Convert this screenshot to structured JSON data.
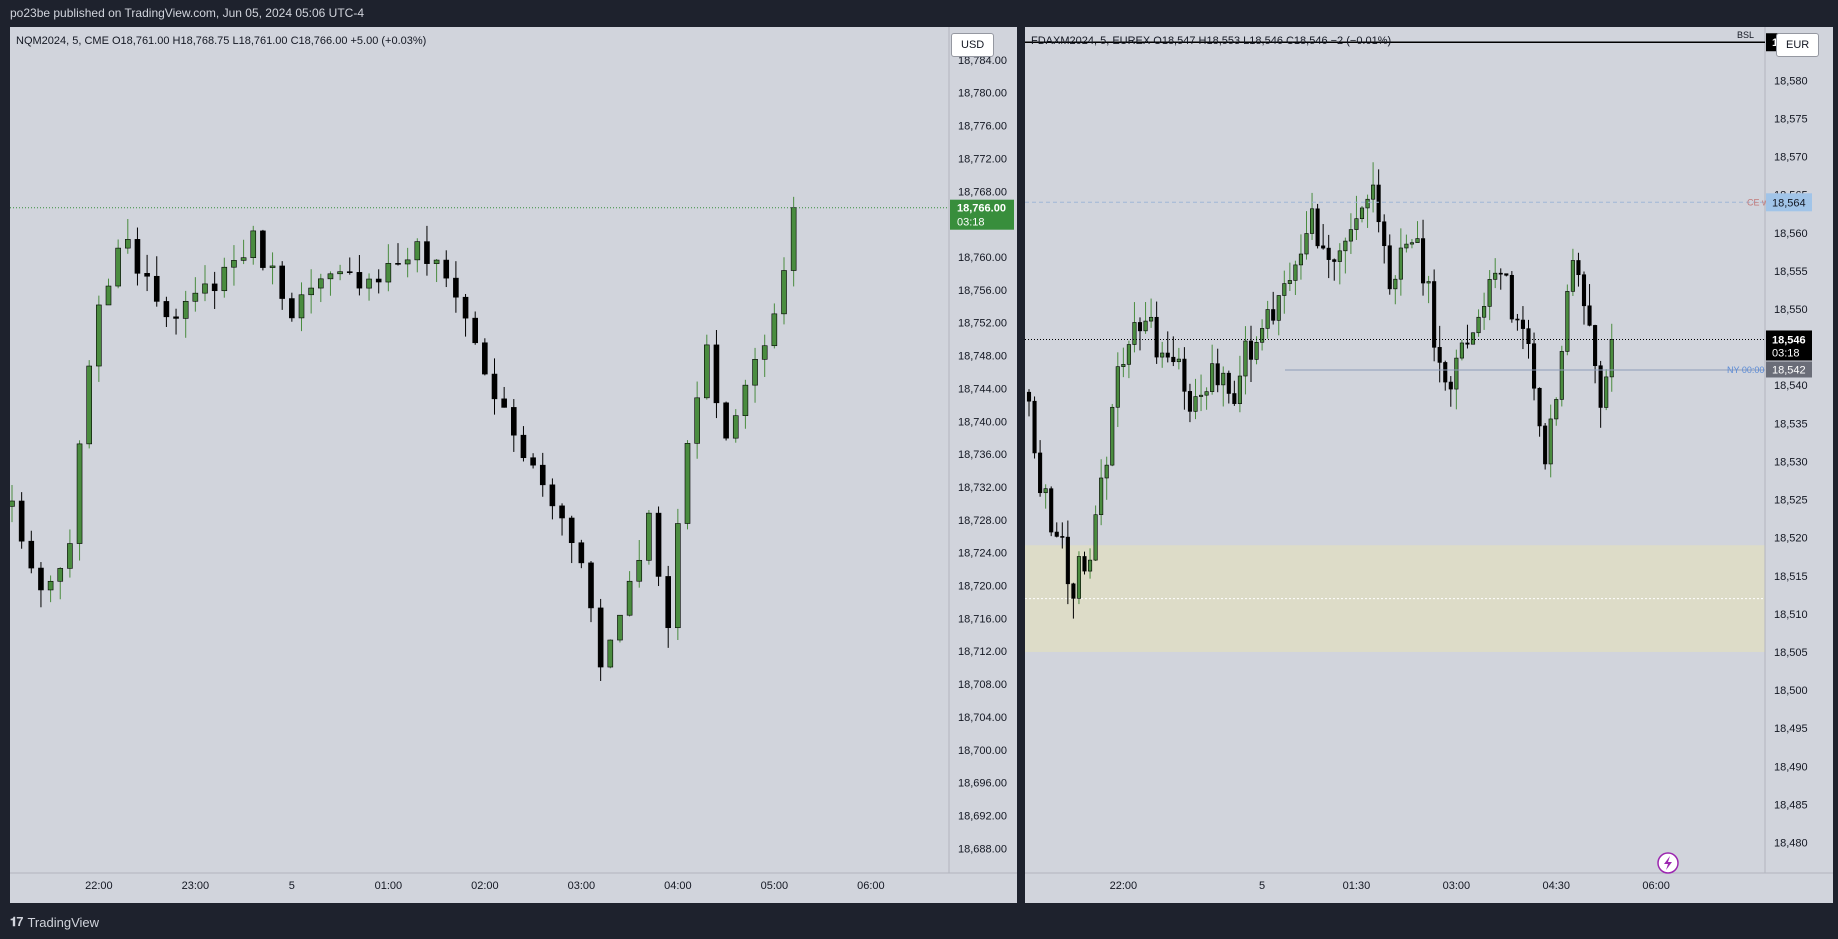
{
  "header": {
    "published": "po23be published on TradingView.com, Jun 05, 2024 05:06 UTC-4"
  },
  "footer": {
    "brand": "TradingView",
    "logo_icon": "tradingview-logo-icon"
  },
  "colors": {
    "background": "#d1d4dc",
    "bull": "#4a8c3f",
    "bear": "#000000",
    "grid_line": "#b2b5be",
    "last_price_nq": "#388e3c",
    "ce_label": "#a1c4e8",
    "zone": "#dddcc8"
  },
  "nq": {
    "legend": "NQM2024, 5, CME  O18,761.00  H18,768.75  L18,761.00  C18,766.00  +5.00 (+0.03%)",
    "currency": "USD",
    "last_price": "18,766.00",
    "countdown": "03:18"
  },
  "dax": {
    "legend": "FDAXM2024, 5, EUREX  O18,547  H18,553  L18,546  C18,546  −2 (−0.01%)",
    "currency": "EUR",
    "bsl_label": "BSL",
    "bsl_price": "18,585",
    "ce_label": "CE w",
    "ce_price": "18,564",
    "last_price": "18,546",
    "countdown": "03:18",
    "ny_label": "NY 00:00",
    "ny_price": "18,542",
    "flash_icon": "lightning-icon"
  },
  "chart_data": [
    {
      "type": "candlestick",
      "title": "NQM2024, 5, CME",
      "ylim": [
        18685,
        18788
      ],
      "y_ticks": [
        "18,784.00",
        "18,780.00",
        "18,776.00",
        "18,772.00",
        "18,768.00",
        "18,764.00",
        "18,760.00",
        "18,756.00",
        "18,752.00",
        "18,748.00",
        "18,744.00",
        "18,740.00",
        "18,736.00",
        "18,732.00",
        "18,728.00",
        "18,724.00",
        "18,720.00",
        "18,716.00",
        "18,712.00",
        "18,708.00",
        "18,704.00",
        "18,700.00",
        "18,696.00",
        "18,692.00",
        "18,688.00"
      ],
      "x_ticks": [
        "22:00",
        "23:00",
        "5",
        "01:00",
        "02:00",
        "03:00",
        "04:00",
        "05:00",
        "06:00"
      ],
      "x_tick_bar_index": [
        9,
        19,
        29,
        39,
        49,
        59,
        69,
        79,
        89
      ],
      "ohlc_keypoints": [
        {
          "bar": 0,
          "close": 18730
        },
        {
          "bar": 3,
          "close": 18718
        },
        {
          "bar": 6,
          "close": 18724
        },
        {
          "bar": 8,
          "close": 18748
        },
        {
          "bar": 11,
          "close": 18762
        },
        {
          "bar": 14,
          "close": 18758
        },
        {
          "bar": 17,
          "close": 18752
        },
        {
          "bar": 20,
          "close": 18756
        },
        {
          "bar": 25,
          "close": 18762
        },
        {
          "bar": 29,
          "close": 18754
        },
        {
          "bar": 33,
          "close": 18757
        },
        {
          "bar": 38,
          "close": 18758
        },
        {
          "bar": 42,
          "close": 18761
        },
        {
          "bar": 46,
          "close": 18756
        },
        {
          "bar": 49,
          "close": 18746
        },
        {
          "bar": 52,
          "close": 18738
        },
        {
          "bar": 56,
          "close": 18730
        },
        {
          "bar": 59,
          "close": 18724
        },
        {
          "bar": 61,
          "close": 18710
        },
        {
          "bar": 63,
          "close": 18717
        },
        {
          "bar": 66,
          "close": 18728
        },
        {
          "bar": 68,
          "close": 18716
        },
        {
          "bar": 70,
          "close": 18737
        },
        {
          "bar": 72,
          "close": 18748
        },
        {
          "bar": 74,
          "close": 18738
        },
        {
          "bar": 76,
          "close": 18744
        },
        {
          "bar": 78,
          "close": 18750
        },
        {
          "bar": 80,
          "close": 18758
        },
        {
          "bar": 81,
          "close": 18766
        }
      ]
    },
    {
      "type": "candlestick",
      "title": "FDAXM2024, 5, EUREX",
      "ylim": [
        18476,
        18587
      ],
      "y_ticks": [
        "18,580",
        "18,575",
        "18,570",
        "18,565",
        "18,560",
        "18,555",
        "18,550",
        "18,545",
        "18,540",
        "18,535",
        "18,530",
        "18,525",
        "18,520",
        "18,515",
        "18,510",
        "18,505",
        "18,500",
        "18,495",
        "18,490",
        "18,485",
        "18,480"
      ],
      "x_ticks": [
        "22:00",
        "5",
        "01:30",
        "03:00",
        "04:30",
        "06:00"
      ],
      "x_tick_bar_index": [
        17,
        42,
        59,
        77,
        95,
        113
      ],
      "levels": {
        "BSL": 18585,
        "CE w": 18564,
        "NY 00:00": 18542,
        "last": 18546
      },
      "zone": {
        "top": 18519,
        "bottom": 18505,
        "mid": 18512
      },
      "ohlc_keypoints": [
        {
          "bar": 0,
          "close": 18537
        },
        {
          "bar": 2,
          "close": 18526
        },
        {
          "bar": 5,
          "close": 18520
        },
        {
          "bar": 8,
          "close": 18514
        },
        {
          "bar": 11,
          "close": 18518
        },
        {
          "bar": 14,
          "close": 18531
        },
        {
          "bar": 16,
          "close": 18543
        },
        {
          "bar": 18,
          "close": 18545
        },
        {
          "bar": 21,
          "close": 18548
        },
        {
          "bar": 25,
          "close": 18544
        },
        {
          "bar": 29,
          "close": 18539
        },
        {
          "bar": 33,
          "close": 18541
        },
        {
          "bar": 37,
          "close": 18540
        },
        {
          "bar": 40,
          "close": 18545
        },
        {
          "bar": 43,
          "close": 18549
        },
        {
          "bar": 47,
          "close": 18553
        },
        {
          "bar": 51,
          "close": 18561
        },
        {
          "bar": 55,
          "close": 18557
        },
        {
          "bar": 59,
          "close": 18563
        },
        {
          "bar": 62,
          "close": 18566
        },
        {
          "bar": 65,
          "close": 18552
        },
        {
          "bar": 69,
          "close": 18560
        },
        {
          "bar": 72,
          "close": 18552
        },
        {
          "bar": 75,
          "close": 18538
        },
        {
          "bar": 78,
          "close": 18545
        },
        {
          "bar": 81,
          "close": 18548
        },
        {
          "bar": 84,
          "close": 18556
        },
        {
          "bar": 87,
          "close": 18550
        },
        {
          "bar": 90,
          "close": 18546
        },
        {
          "bar": 93,
          "close": 18530
        },
        {
          "bar": 95,
          "close": 18540
        },
        {
          "bar": 98,
          "close": 18556
        },
        {
          "bar": 101,
          "close": 18548
        },
        {
          "bar": 103,
          "close": 18538
        },
        {
          "bar": 105,
          "close": 18546
        }
      ]
    }
  ]
}
